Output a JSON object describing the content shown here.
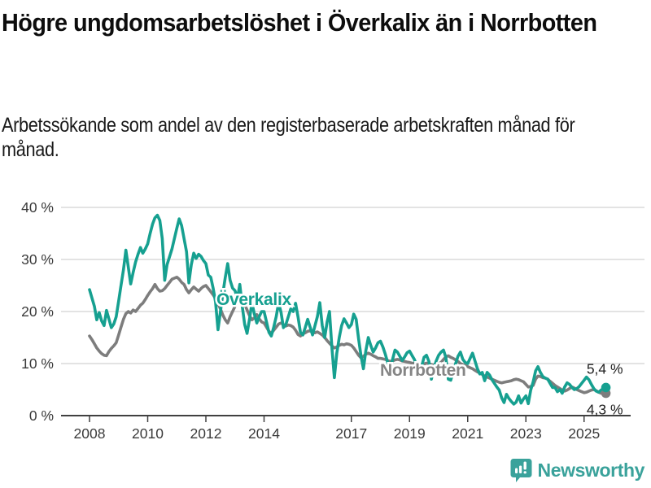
{
  "chart_data": {
    "type": "line",
    "title": "Högre ungdomsarbetslöshet i Överkalix än i Norrbotten",
    "subtitle": "Arbetssökande som andel av den registerbaserade arbetskraften månad för månad.",
    "unit": "%",
    "x_start_year": 2008,
    "x_months_per_point": 1,
    "x_end": "2025-10",
    "grid": "horizontal",
    "legend": "inline-labels",
    "x_axis": {
      "ticks": [
        2008,
        2010,
        2012,
        2014,
        2017,
        2019,
        2021,
        2023,
        2025
      ],
      "labels": [
        "2008",
        "2010",
        "2012",
        "2014",
        "2017",
        "2019",
        "2021",
        "2023",
        "2025"
      ]
    },
    "y_axis": {
      "ticks": [
        0,
        10,
        20,
        30,
        40
      ],
      "labels": [
        "0 %",
        "10 %",
        "20 %",
        "30 %",
        "40 %"
      ],
      "range": [
        0,
        42
      ]
    },
    "series": [
      {
        "name": "Överkalix",
        "color": "#16A090",
        "label_color": "#16A090",
        "end_label": "5,4 %",
        "end_value": 5.4,
        "values": [
          24.2,
          22.6,
          21.0,
          18.4,
          19.8,
          18.2,
          17.3,
          20.2,
          18.6,
          16.9,
          17.6,
          19.0,
          22.0,
          25.0,
          28.0,
          31.8,
          28.5,
          25.3,
          27.5,
          29.5,
          31.0,
          32.3,
          31.2,
          32.0,
          33.0,
          35.0,
          36.8,
          38.0,
          38.5,
          37.5,
          34.0,
          26.0,
          29.0,
          30.5,
          32.0,
          34.0,
          36.0,
          37.8,
          36.5,
          34.0,
          31.5,
          25.5,
          29.0,
          31.2,
          30.2,
          31.0,
          30.6,
          29.8,
          29.2,
          27.0,
          26.6,
          24.5,
          21.8,
          16.5,
          20.0,
          23.5,
          26.5,
          29.2,
          26.0,
          24.5,
          24.0,
          22.5,
          25.2,
          21.0,
          17.5,
          15.8,
          18.5,
          21.7,
          19.5,
          17.8,
          19.0,
          20.0,
          20.0,
          18.0,
          16.0,
          15.3,
          17.0,
          19.0,
          21.7,
          19.8,
          16.9,
          17.5,
          19.0,
          20.5,
          20.0,
          21.6,
          19.0,
          16.0,
          15.5,
          16.9,
          18.5,
          17.0,
          15.5,
          17.3,
          19.0,
          21.7,
          17.3,
          15.0,
          18.0,
          20.0,
          13.0,
          7.3,
          12.0,
          15.0,
          17.3,
          18.6,
          17.8,
          16.9,
          17.5,
          19.5,
          18.5,
          14.7,
          11.4,
          9.0,
          12.5,
          15.0,
          13.5,
          12.2,
          13.0,
          14.0,
          14.3,
          13.2,
          11.8,
          10.2,
          9.0,
          10.8,
          12.6,
          12.2,
          11.4,
          10.6,
          11.3,
          12.1,
          12.4,
          11.6,
          10.8,
          9.6,
          8.3,
          9.4,
          11.2,
          11.6,
          10.4,
          7.0,
          9.0,
          10.5,
          11.6,
          12.2,
          12.6,
          11.2,
          7.0,
          6.8,
          8.4,
          10.0,
          11.4,
          12.2,
          10.8,
          10.2,
          10.0,
          11.0,
          12.0,
          10.5,
          9.0,
          8.0,
          8.3,
          6.7,
          8.3,
          7.8,
          6.9,
          6.2,
          5.5,
          4.9,
          3.4,
          2.5,
          4.1,
          3.3,
          2.7,
          2.2,
          2.6,
          3.8,
          2.4,
          3.2,
          3.8,
          2.3,
          4.9,
          6.5,
          8.6,
          9.4,
          8.3,
          7.5,
          7.2,
          7.0,
          6.2,
          5.4,
          5.4,
          4.6,
          5.0,
          4.3,
          5.5,
          6.3,
          6.0,
          5.4,
          5.0,
          5.2,
          5.6,
          6.2,
          6.8,
          7.4,
          6.9,
          6.0,
          5.2,
          4.7,
          4.5,
          4.9,
          5.2,
          5.4
        ]
      },
      {
        "name": "Norrbotten",
        "color": "#7D7D7D",
        "label_color": "#858585",
        "end_label": "4,3 %",
        "end_value": 4.3,
        "values": [
          15.3,
          14.6,
          13.8,
          13.0,
          12.4,
          11.9,
          11.6,
          11.5,
          12.3,
          12.9,
          13.4,
          14.0,
          15.5,
          17.0,
          18.5,
          19.6,
          20.0,
          19.7,
          20.3,
          20.0,
          20.6,
          21.2,
          21.6,
          22.3,
          23.1,
          23.8,
          24.4,
          25.2,
          24.4,
          23.9,
          24.0,
          24.4,
          25.0,
          25.6,
          26.2,
          26.4,
          26.6,
          26.2,
          25.6,
          25.2,
          24.2,
          23.6,
          24.2,
          24.7,
          24.3,
          23.9,
          24.4,
          24.8,
          25.0,
          24.4,
          23.8,
          23.2,
          22.5,
          21.5,
          20.5,
          19.3,
          18.4,
          17.8,
          19.0,
          20.0,
          21.0,
          21.8,
          22.3,
          22.0,
          21.4,
          20.3,
          19.2,
          18.4,
          18.8,
          19.4,
          18.6,
          18.0,
          17.8,
          17.0,
          16.2,
          15.8,
          16.4,
          17.0,
          17.6,
          17.8,
          17.5,
          17.2,
          17.4,
          17.3,
          17.0,
          16.4,
          15.6,
          15.3,
          15.7,
          15.9,
          16.2,
          16.3,
          16.0,
          15.9,
          16.1,
          15.8,
          15.5,
          15.0,
          14.4,
          13.9,
          13.4,
          13.0,
          13.2,
          13.5,
          13.7,
          13.6,
          13.8,
          13.7,
          13.5,
          13.0,
          12.3,
          11.6,
          11.1,
          11.4,
          11.8,
          12.0,
          11.8,
          11.5,
          11.3,
          11.0,
          11.0,
          10.9,
          10.8,
          10.6,
          10.4,
          10.5,
          10.7,
          10.8,
          10.7,
          10.5,
          10.4,
          10.3,
          10.2,
          10.1,
          10.0,
          9.8,
          9.6,
          9.7,
          9.9,
          10.1,
          10.0,
          9.8,
          9.7,
          9.8,
          10.0,
          10.2,
          10.8,
          11.3,
          11.5,
          11.2,
          11.0,
          10.7,
          10.4,
          10.0,
          9.8,
          9.6,
          9.4,
          9.2,
          9.0,
          8.7,
          8.4,
          8.2,
          7.9,
          7.6,
          7.4,
          7.2,
          7.0,
          6.8,
          6.6,
          6.4,
          6.3,
          6.4,
          6.5,
          6.6,
          6.7,
          6.9,
          7.0,
          6.9,
          6.7,
          6.5,
          6.0,
          5.5,
          5.6,
          5.8,
          7.0,
          7.6,
          7.5,
          7.3,
          7.2,
          7.0,
          6.6,
          6.2,
          5.8,
          5.5,
          5.2,
          4.9,
          4.7,
          4.9,
          5.2,
          5.5,
          5.3,
          5.0,
          4.8,
          4.6,
          4.4,
          4.5,
          4.7,
          4.9,
          5.0,
          4.8,
          4.5,
          4.3,
          4.2,
          4.3
        ]
      }
    ]
  },
  "footer": {
    "brand": "Newsworthy",
    "brand_color": "#3AA29B"
  }
}
